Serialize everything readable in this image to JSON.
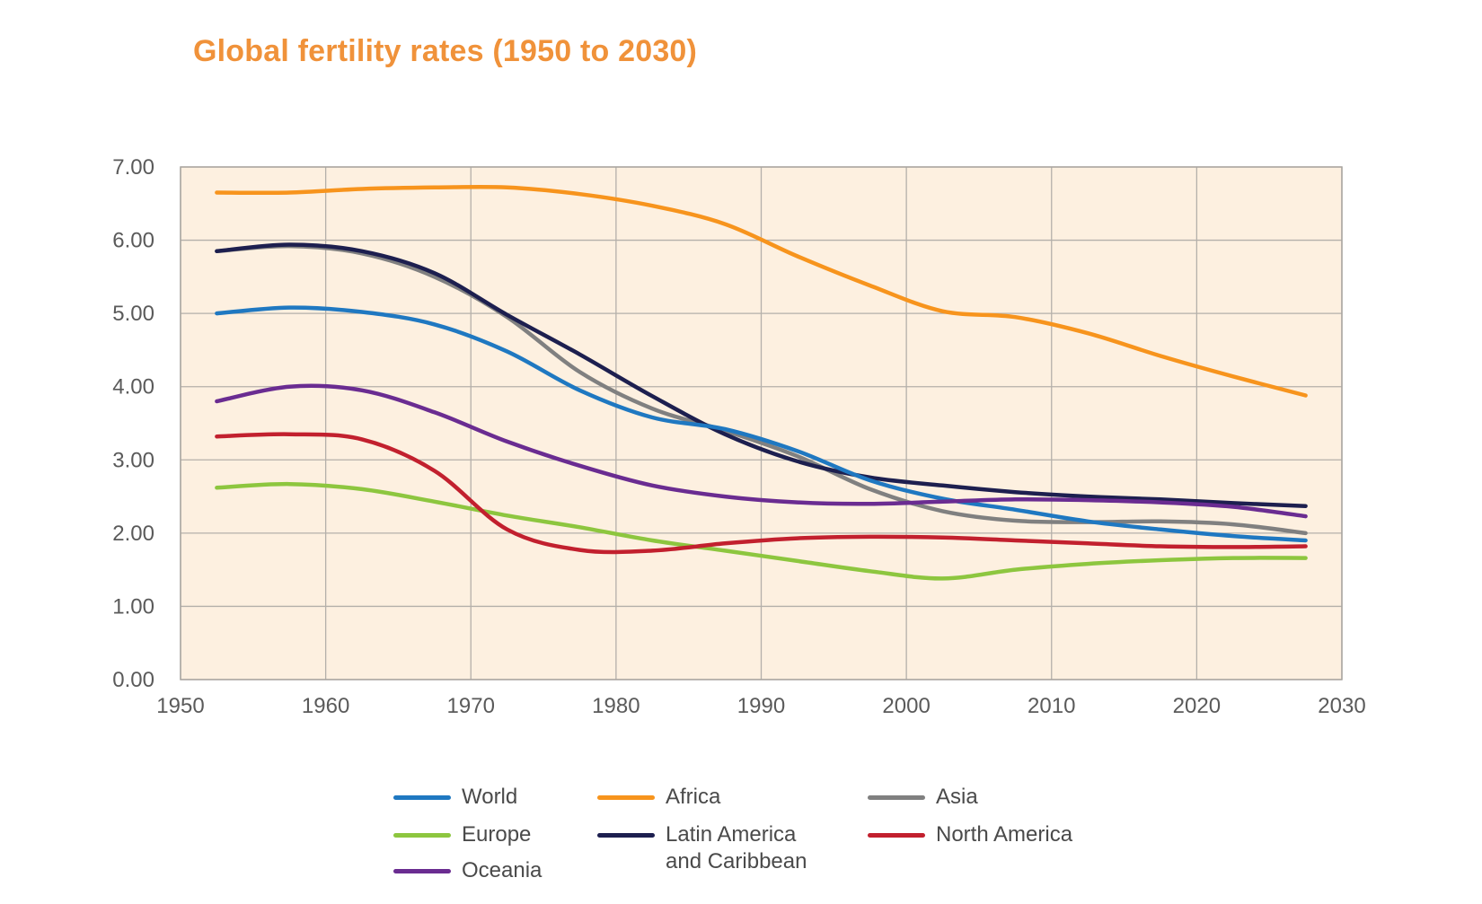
{
  "chart_data": {
    "type": "line",
    "title": "Global fertility rates (1950 to 2030)",
    "xlabel": "",
    "ylabel": "",
    "xlim": [
      1950,
      2030
    ],
    "ylim": [
      0,
      7
    ],
    "x_ticks": [
      "1950",
      "1960",
      "1970",
      "1980",
      "1990",
      "2000",
      "2010",
      "2020",
      "2030"
    ],
    "y_ticks": [
      "0.00",
      "1.00",
      "2.00",
      "3.00",
      "4.00",
      "5.00",
      "6.00",
      "7.00"
    ],
    "grid": true,
    "legend_position": "bottom",
    "plot_background": "#fdf0e0",
    "x": [
      1952.5,
      1957.5,
      1962.5,
      1967.5,
      1972.5,
      1977.5,
      1982.5,
      1987.5,
      1992.5,
      1997.5,
      2002.5,
      2007.5,
      2012.5,
      2017.5,
      2022.5,
      2027.5
    ],
    "series": [
      {
        "name": "World",
        "color": "#1f78c1",
        "values": [
          5.0,
          5.08,
          5.02,
          4.85,
          4.48,
          3.95,
          3.58,
          3.42,
          3.12,
          2.72,
          2.47,
          2.32,
          2.16,
          2.05,
          1.96,
          1.9
        ]
      },
      {
        "name": "Africa",
        "color": "#f7941d",
        "values": [
          6.65,
          6.65,
          6.7,
          6.72,
          6.72,
          6.63,
          6.47,
          6.22,
          5.78,
          5.38,
          5.03,
          4.95,
          4.73,
          4.42,
          4.14,
          3.88
        ]
      },
      {
        "name": "Asia",
        "color": "#808080",
        "values": [
          5.85,
          5.92,
          5.82,
          5.5,
          4.95,
          4.2,
          3.7,
          3.4,
          3.05,
          2.6,
          2.3,
          2.17,
          2.15,
          2.16,
          2.12,
          2.0
        ]
      },
      {
        "name": "Europe",
        "color": "#8dc63f",
        "values": [
          2.62,
          2.67,
          2.6,
          2.43,
          2.24,
          2.08,
          1.9,
          1.76,
          1.62,
          1.48,
          1.38,
          1.5,
          1.58,
          1.63,
          1.66,
          1.66
        ]
      },
      {
        "name": "Latin America\nand Caribbean",
        "color": "#1d1f4f",
        "values": [
          5.85,
          5.94,
          5.85,
          5.55,
          4.98,
          4.44,
          3.87,
          3.35,
          2.98,
          2.76,
          2.65,
          2.56,
          2.5,
          2.46,
          2.41,
          2.37
        ]
      },
      {
        "name": "North America",
        "color": "#c2202e",
        "values": [
          3.32,
          3.35,
          3.28,
          2.85,
          2.05,
          1.77,
          1.76,
          1.86,
          1.93,
          1.95,
          1.94,
          1.9,
          1.86,
          1.82,
          1.81,
          1.82
        ]
      },
      {
        "name": "Oceania",
        "color": "#6a2c91",
        "values": [
          3.8,
          4.0,
          3.95,
          3.65,
          3.25,
          2.92,
          2.65,
          2.5,
          2.42,
          2.4,
          2.43,
          2.46,
          2.45,
          2.42,
          2.36,
          2.23
        ]
      }
    ]
  },
  "legend": [
    {
      "label": "World",
      "color": "#1f78c1"
    },
    {
      "label": "Africa",
      "color": "#f7941d"
    },
    {
      "label": "Asia",
      "color": "#808080"
    },
    {
      "label": "Europe",
      "color": "#8dc63f"
    },
    {
      "label": "Latin America\nand Caribbean",
      "color": "#1d1f4f"
    },
    {
      "label": "North America",
      "color": "#c2202e"
    },
    {
      "label": "Oceania",
      "color": "#6a2c91"
    }
  ]
}
